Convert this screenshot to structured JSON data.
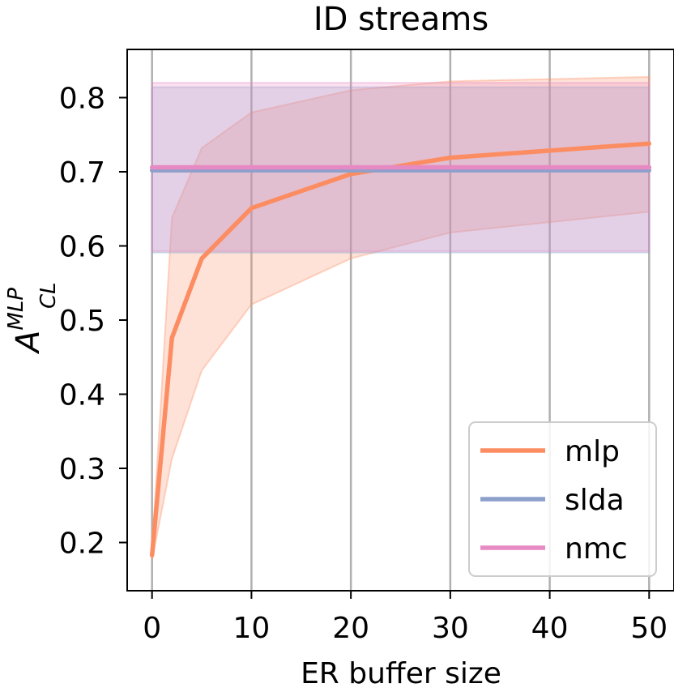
{
  "chart_data": {
    "type": "line",
    "title": "ID streams",
    "xlabel": "ER buffer size",
    "ylabel": "A",
    "ylabel_subscript": "CL",
    "ylabel_superscript": "MLP",
    "xlim": [
      -2.5,
      52.5
    ],
    "ylim": [
      0.135,
      0.865
    ],
    "xticks": [
      0,
      10,
      20,
      30,
      40,
      50
    ],
    "xtick_labels": [
      "0",
      "10",
      "20",
      "30",
      "40",
      "50"
    ],
    "yticks": [
      0.2,
      0.3,
      0.4,
      0.5,
      0.6,
      0.7,
      0.8
    ],
    "ytick_labels": [
      "0.2",
      "0.3",
      "0.4",
      "0.5",
      "0.6",
      "0.7",
      "0.8"
    ],
    "grid": "vertical",
    "legend_position": "bottom-right",
    "series": [
      {
        "name": "mlp",
        "color": "#fc8d62",
        "x": [
          0,
          2,
          5,
          10,
          20,
          30,
          50
        ],
        "y": [
          0.183,
          0.476,
          0.583,
          0.651,
          0.697,
          0.719,
          0.738
        ],
        "band_lower": [
          0.176,
          0.313,
          0.432,
          0.521,
          0.583,
          0.618,
          0.646
        ],
        "band_upper": [
          0.19,
          0.638,
          0.732,
          0.78,
          0.81,
          0.822,
          0.828
        ]
      },
      {
        "name": "slda",
        "color": "#8da0cb",
        "x": [
          0,
          50
        ],
        "y": [
          0.702,
          0.702
        ],
        "band_lower": [
          0.591,
          0.591
        ],
        "band_upper": [
          0.814,
          0.814
        ]
      },
      {
        "name": "nmc",
        "color": "#e78ac3",
        "x": [
          0,
          50
        ],
        "y": [
          0.706,
          0.706
        ],
        "band_lower": [
          0.593,
          0.593
        ],
        "band_upper": [
          0.82,
          0.82
        ]
      }
    ]
  }
}
